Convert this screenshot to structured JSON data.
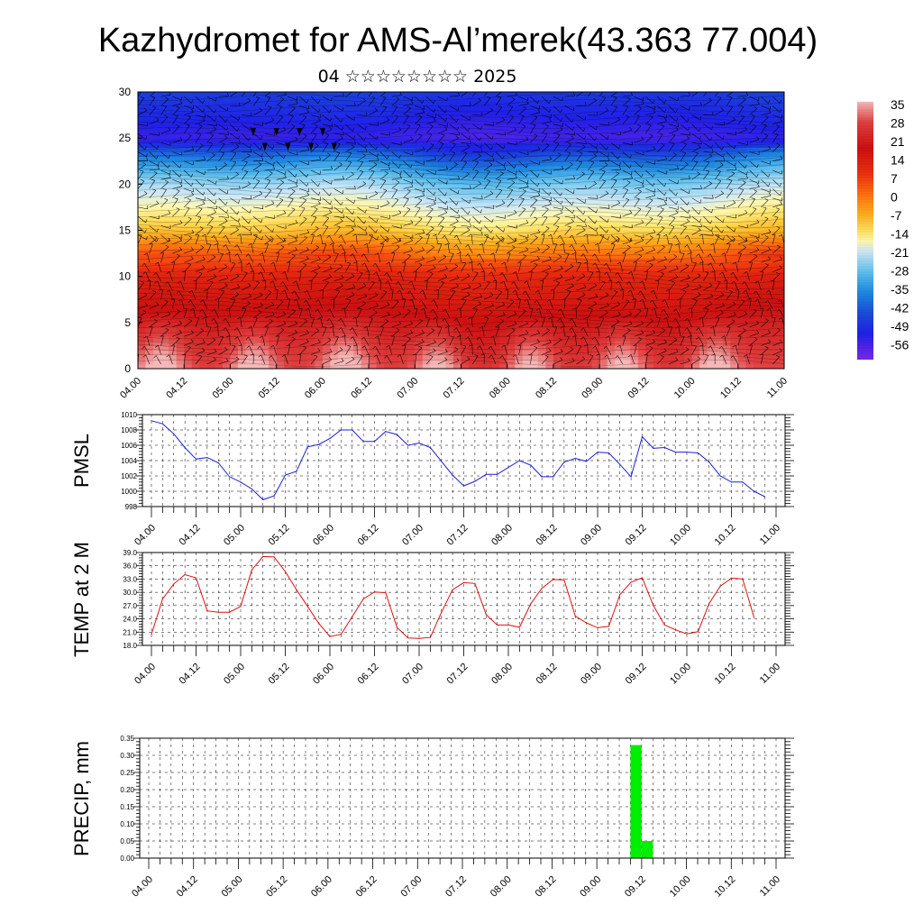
{
  "title": "Kazhydromet for AMS-Al’merek(43.363 77.004)",
  "subtitle": "04 ☆☆☆☆☆☆☆☆ 2025",
  "colors": {
    "pmsl_line": "#1f1fd6",
    "temp_line": "#e01010",
    "precip_bar": "#00ee00",
    "wind_barbs": "#000000",
    "contour_lines": "#000000"
  },
  "time_ticks": [
    "04.00",
    "04.12",
    "05.00",
    "05.12",
    "06.00",
    "06.12",
    "07.00",
    "07.12",
    "08.00",
    "08.12",
    "09.00",
    "09.12",
    "10.00",
    "10.12",
    "11.00"
  ],
  "chart_data": [
    {
      "type": "heatmap",
      "name": "cross-section",
      "x_ticks": [
        "04.00",
        "04.12",
        "05.00",
        "05.12",
        "06.00",
        "06.12",
        "07.00",
        "07.12",
        "08.00",
        "08.12",
        "09.00",
        "09.12",
        "10.00",
        "10.12",
        "11.00"
      ],
      "y_ticks": [
        "0",
        "5",
        "10",
        "15",
        "20",
        "25",
        "30"
      ],
      "ylim": [
        0,
        30
      ],
      "xlim": [
        0,
        168
      ],
      "colorbar_labels": [
        "35",
        "28",
        "21",
        "14",
        "7",
        "0",
        "-7",
        "-14",
        "-21",
        "-28",
        "-35",
        "-42",
        "-49",
        "-56"
      ],
      "colorbar_range": [
        -60,
        38
      ],
      "temperature_profile": [
        {
          "level": 0,
          "value": 30
        },
        {
          "level": 5,
          "value": 25
        },
        {
          "level": 10,
          "value": 19
        },
        {
          "level": 13,
          "value": 8
        },
        {
          "level": 15,
          "value": -5
        },
        {
          "level": 17,
          "value": -14
        },
        {
          "level": 20,
          "value": -26
        },
        {
          "level": 23,
          "value": -42
        },
        {
          "level": 25,
          "value": -55
        },
        {
          "level": 27,
          "value": -52
        },
        {
          "level": 30,
          "value": -48
        }
      ],
      "surface_warm_maxima_hours": [
        6,
        30,
        54,
        78,
        102,
        126,
        150
      ],
      "grid": false,
      "overlay": "wind barbs"
    },
    {
      "type": "line",
      "name": "pmsl",
      "ylabel": "PMSL",
      "x_ticks": [
        "04.00",
        "04.12",
        "05.00",
        "05.12",
        "06.00",
        "06.12",
        "07.00",
        "07.12",
        "08.00",
        "08.12",
        "09.00",
        "09.12",
        "10.00",
        "10.12",
        "11.00"
      ],
      "y_ticks": [
        "998",
        "1000",
        "1002",
        "1004",
        "1006",
        "1008",
        "1010"
      ],
      "ylim": [
        998,
        1010
      ],
      "xlim": [
        0,
        168
      ],
      "grid": true,
      "x": [
        0,
        3,
        6,
        9,
        12,
        15,
        18,
        21,
        24,
        27,
        30,
        33,
        36,
        39,
        42,
        45,
        48,
        51,
        54,
        57,
        60,
        63,
        66,
        69,
        72,
        75,
        78,
        81,
        84,
        87,
        90,
        93,
        96,
        99,
        102,
        105,
        108,
        111,
        114,
        117,
        120,
        123,
        126,
        129,
        132,
        135,
        138,
        141,
        144,
        147,
        150,
        153,
        156,
        159,
        162,
        165
      ],
      "values": [
        1009.2,
        1008.8,
        1007.5,
        1005.7,
        1004.2,
        1004.4,
        1003.7,
        1001.9,
        1001.2,
        1000.3,
        998.9,
        999.4,
        1002.1,
        1002.6,
        1005.8,
        1006.1,
        1006.9,
        1008.0,
        1008.0,
        1006.5,
        1006.5,
        1007.8,
        1007.4,
        1006.0,
        1006.3,
        1005.7,
        1003.9,
        1002.1,
        1000.7,
        1001.3,
        1002.2,
        1002.2,
        1003.1,
        1004.0,
        1003.4,
        1001.9,
        1001.9,
        1003.8,
        1004.3,
        1003.9,
        1005.1,
        1005.0,
        1003.5,
        1001.9,
        1007.1,
        1005.6,
        1005.7,
        1005.1,
        1005.1,
        1005.0,
        1003.8,
        1002.0,
        1001.2,
        1001.2,
        1000.0,
        999.3
      ]
    },
    {
      "type": "line",
      "name": "temp",
      "ylabel": "TEMP at 2 M",
      "x_ticks": [
        "04.00",
        "04.12",
        "05.00",
        "05.12",
        "06.00",
        "06.12",
        "07.00",
        "07.12",
        "08.00",
        "08.12",
        "09.00",
        "09.12",
        "10.00",
        "10.12",
        "11.00"
      ],
      "y_ticks": [
        "18.0",
        "21.0",
        "24.0",
        "27.0",
        "30.0",
        "33.0",
        "36.0",
        "39.0"
      ],
      "ylim": [
        18,
        39
      ],
      "xlim": [
        0,
        168
      ],
      "grid": true,
      "x": [
        0,
        3,
        6,
        9,
        12,
        15,
        18,
        21,
        24,
        27,
        30,
        33,
        36,
        39,
        42,
        45,
        48,
        51,
        54,
        57,
        60,
        63,
        66,
        69,
        72,
        75,
        78,
        81,
        84,
        87,
        90,
        93,
        96,
        99,
        102,
        105,
        108,
        111,
        114,
        117,
        120,
        123,
        126,
        129,
        132,
        135,
        138,
        141,
        144,
        147,
        150,
        153,
        156,
        159,
        162
      ],
      "values": [
        20.5,
        28.5,
        31.9,
        34.0,
        33.3,
        25.8,
        25.5,
        25.5,
        26.8,
        35.1,
        38.1,
        38.0,
        34.7,
        30.6,
        26.8,
        23.0,
        20.0,
        20.5,
        24.5,
        28.5,
        30.1,
        29.9,
        22.1,
        19.7,
        19.6,
        19.8,
        25.5,
        30.6,
        32.2,
        32.0,
        25.0,
        22.6,
        22.6,
        22.1,
        27.4,
        30.9,
        32.9,
        32.8,
        24.6,
        23.1,
        22.0,
        22.3,
        29.5,
        32.3,
        33.3,
        27.0,
        22.6,
        21.5,
        20.6,
        21.1,
        27.5,
        31.4,
        33.2,
        33.0,
        24.5
      ]
    },
    {
      "type": "bar",
      "name": "precip",
      "ylabel": "PRECIP, mm",
      "x_ticks": [
        "04.00",
        "04.12",
        "05.00",
        "05.12",
        "06.00",
        "06.12",
        "07.00",
        "07.12",
        "08.00",
        "08.12",
        "09.00",
        "09.12",
        "10.00",
        "10.12",
        "11.00"
      ],
      "y_ticks": [
        "0.00",
        "0.05",
        "0.10",
        "0.15",
        "0.20",
        "0.25",
        "0.30",
        "0.35"
      ],
      "ylim": [
        0,
        0.35
      ],
      "xlim": [
        0,
        168
      ],
      "grid": true,
      "bars": [
        {
          "x": [
            129,
            132
          ],
          "value": 0.33
        },
        {
          "x": [
            132,
            135
          ],
          "value": 0.05
        }
      ]
    }
  ]
}
